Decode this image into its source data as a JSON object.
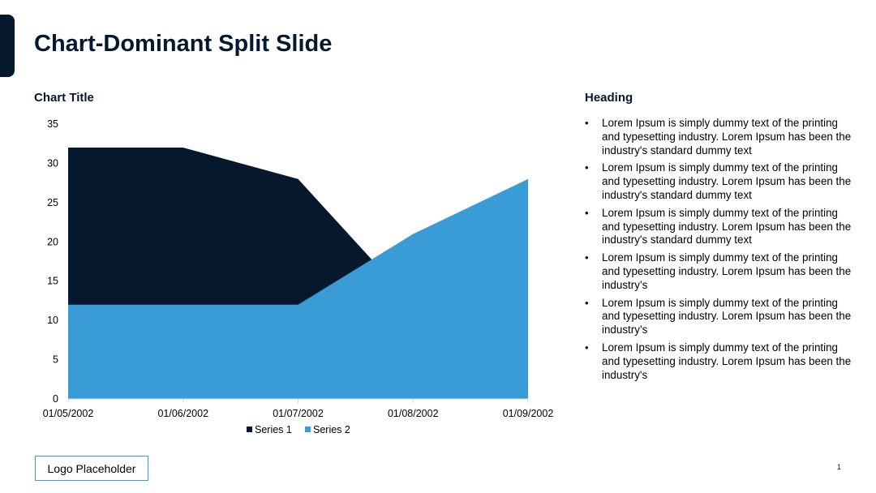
{
  "slide": {
    "title": "Chart-Dominant Split Slide",
    "page_number": "1"
  },
  "right": {
    "heading": "Heading",
    "bullets": [
      "Lorem Ipsum is simply dummy text of the printing and typesetting industry. Lorem Ipsum has been the industry's standard dummy text",
      "Lorem Ipsum is simply dummy text of the printing and typesetting industry. Lorem Ipsum has been the industry's standard dummy text",
      "Lorem Ipsum is simply dummy text of the printing and typesetting industry. Lorem Ipsum has been the industry's standard dummy text",
      "Lorem Ipsum is simply dummy text of the printing and typesetting industry. Lorem Ipsum has been the industry’s",
      "Lorem Ipsum is simply dummy text of the printing and typesetting industry. Lorem Ipsum has been the industry’s",
      "Lorem Ipsum is simply dummy text of the printing and typesetting industry. Lorem Ipsum has been the industry's"
    ]
  },
  "logo": {
    "label": "Logo Placeholder"
  },
  "colors": {
    "series1": "#06182d",
    "series2": "#3a9cd6",
    "accent": "#06182d"
  },
  "chart_data": {
    "type": "area",
    "title": "Chart Title",
    "categories": [
      "01/05/2002",
      "01/06/2002",
      "01/07/2002",
      "01/08/2002",
      "01/09/2002"
    ],
    "series": [
      {
        "name": "Series 1",
        "values": [
          32,
          32,
          28,
          12,
          11
        ]
      },
      {
        "name": "Series 2",
        "values": [
          12,
          12,
          12,
          21,
          28
        ]
      }
    ],
    "ylim": [
      0,
      35
    ],
    "yticks": [
      0,
      5,
      10,
      15,
      20,
      25,
      30,
      35
    ],
    "grid": false,
    "legend": "bottom"
  }
}
